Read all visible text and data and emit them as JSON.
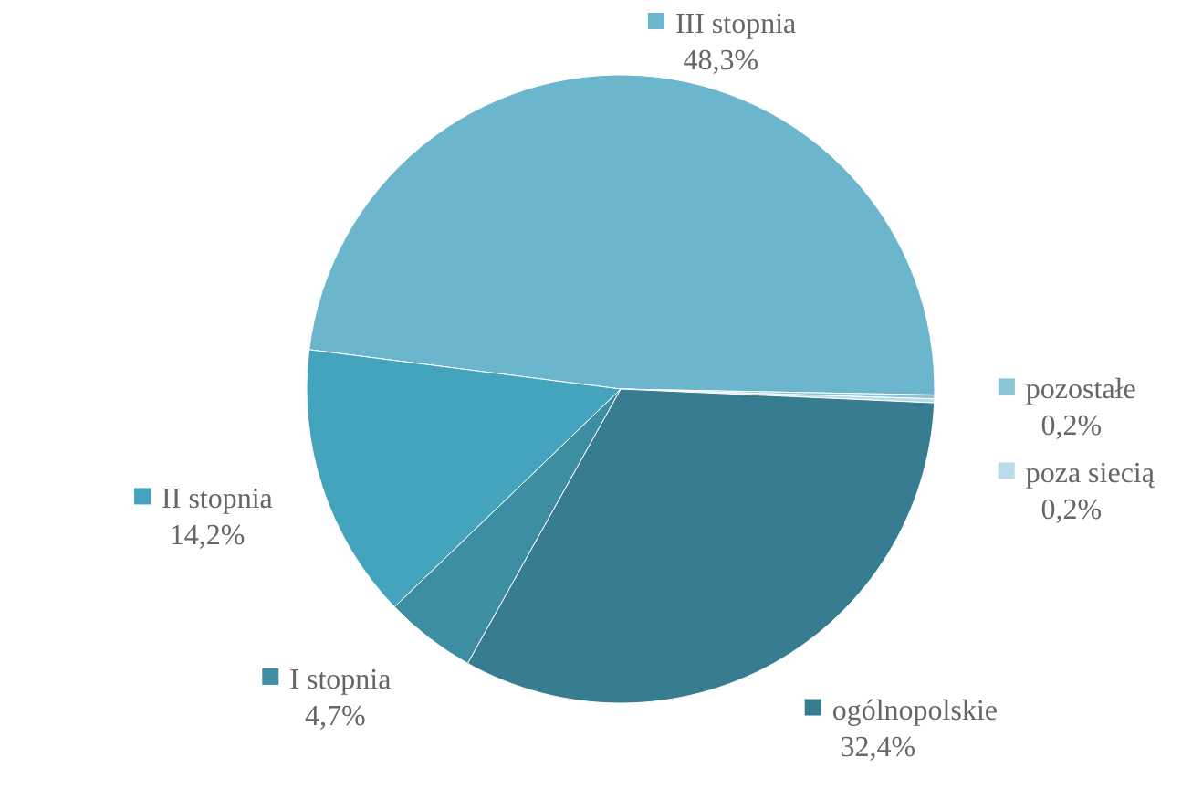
{
  "chart_data": {
    "type": "pie",
    "categories": [
      "III stopnia",
      "pozostałe",
      "poza siecią",
      "ogólnopolskie",
      "I stopnia",
      "II stopnia"
    ],
    "values": [
      48.3,
      0.2,
      0.2,
      32.4,
      4.7,
      14.2
    ],
    "value_labels": [
      "48,3%",
      "0,2%",
      "0,2%",
      "32,4%",
      "4,7%",
      "14,2%"
    ],
    "colors": [
      "#6cb6cd",
      "#8cc4d8",
      "#b9dce7",
      "#377c90",
      "#3e8ea3",
      "#45a4bd"
    ],
    "legend": "right"
  }
}
